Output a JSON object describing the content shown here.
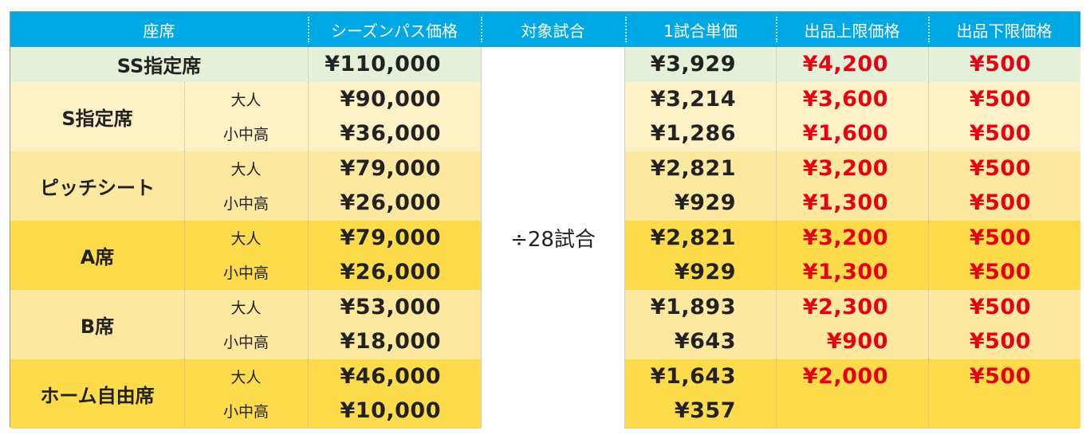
{
  "table": {
    "header": [
      "座席",
      "シーズンパス価格",
      "対象試合",
      "1試合単価",
      "出品上限価格",
      "出品下限価格"
    ],
    "target": "÷28試合",
    "groups": [
      {
        "seat": "SS指定席",
        "rows": [
          {
            "price": "¥110,000",
            "unit": "¥3,929",
            "upper": "¥4,200",
            "lower": "¥500"
          }
        ]
      },
      {
        "seat": "S指定席",
        "rows": [
          {
            "sub": "大人",
            "price": "¥90,000",
            "unit": "¥3,214",
            "upper": "¥3,600",
            "lower": "¥500"
          },
          {
            "sub": "小中高",
            "price": "¥36,000",
            "unit": "¥1,286",
            "upper": "¥1,600",
            "lower": "¥500"
          }
        ]
      },
      {
        "seat": "ピッチシート",
        "rows": [
          {
            "sub": "大人",
            "price": "¥79,000",
            "unit": "¥2,821",
            "upper": "¥3,200",
            "lower": "¥500"
          },
          {
            "sub": "小中高",
            "price": "¥26,000",
            "unit": "¥929",
            "upper": "¥1,300",
            "lower": "¥500"
          }
        ]
      },
      {
        "seat": "A席",
        "rows": [
          {
            "sub": "大人",
            "price": "¥79,000",
            "unit": "¥2,821",
            "upper": "¥3,200",
            "lower": "¥500"
          },
          {
            "sub": "小中高",
            "price": "¥26,000",
            "unit": "¥929",
            "upper": "¥1,300",
            "lower": "¥500"
          }
        ]
      },
      {
        "seat": "B席",
        "rows": [
          {
            "sub": "大人",
            "price": "¥53,000",
            "unit": "¥1,893",
            "upper": "¥2,300",
            "lower": "¥500"
          },
          {
            "sub": "小中高",
            "price": "¥18,000",
            "unit": "¥643",
            "upper": "¥900",
            "lower": "¥500"
          }
        ]
      },
      {
        "seat": "ホーム自由席",
        "rows": [
          {
            "sub": "大人",
            "price": "¥46,000",
            "unit": "¥1,643",
            "upper": "¥2,000",
            "lower": "¥500"
          },
          {
            "sub": "小中高",
            "price": "¥10,000",
            "unit": "¥357"
          }
        ]
      }
    ]
  }
}
